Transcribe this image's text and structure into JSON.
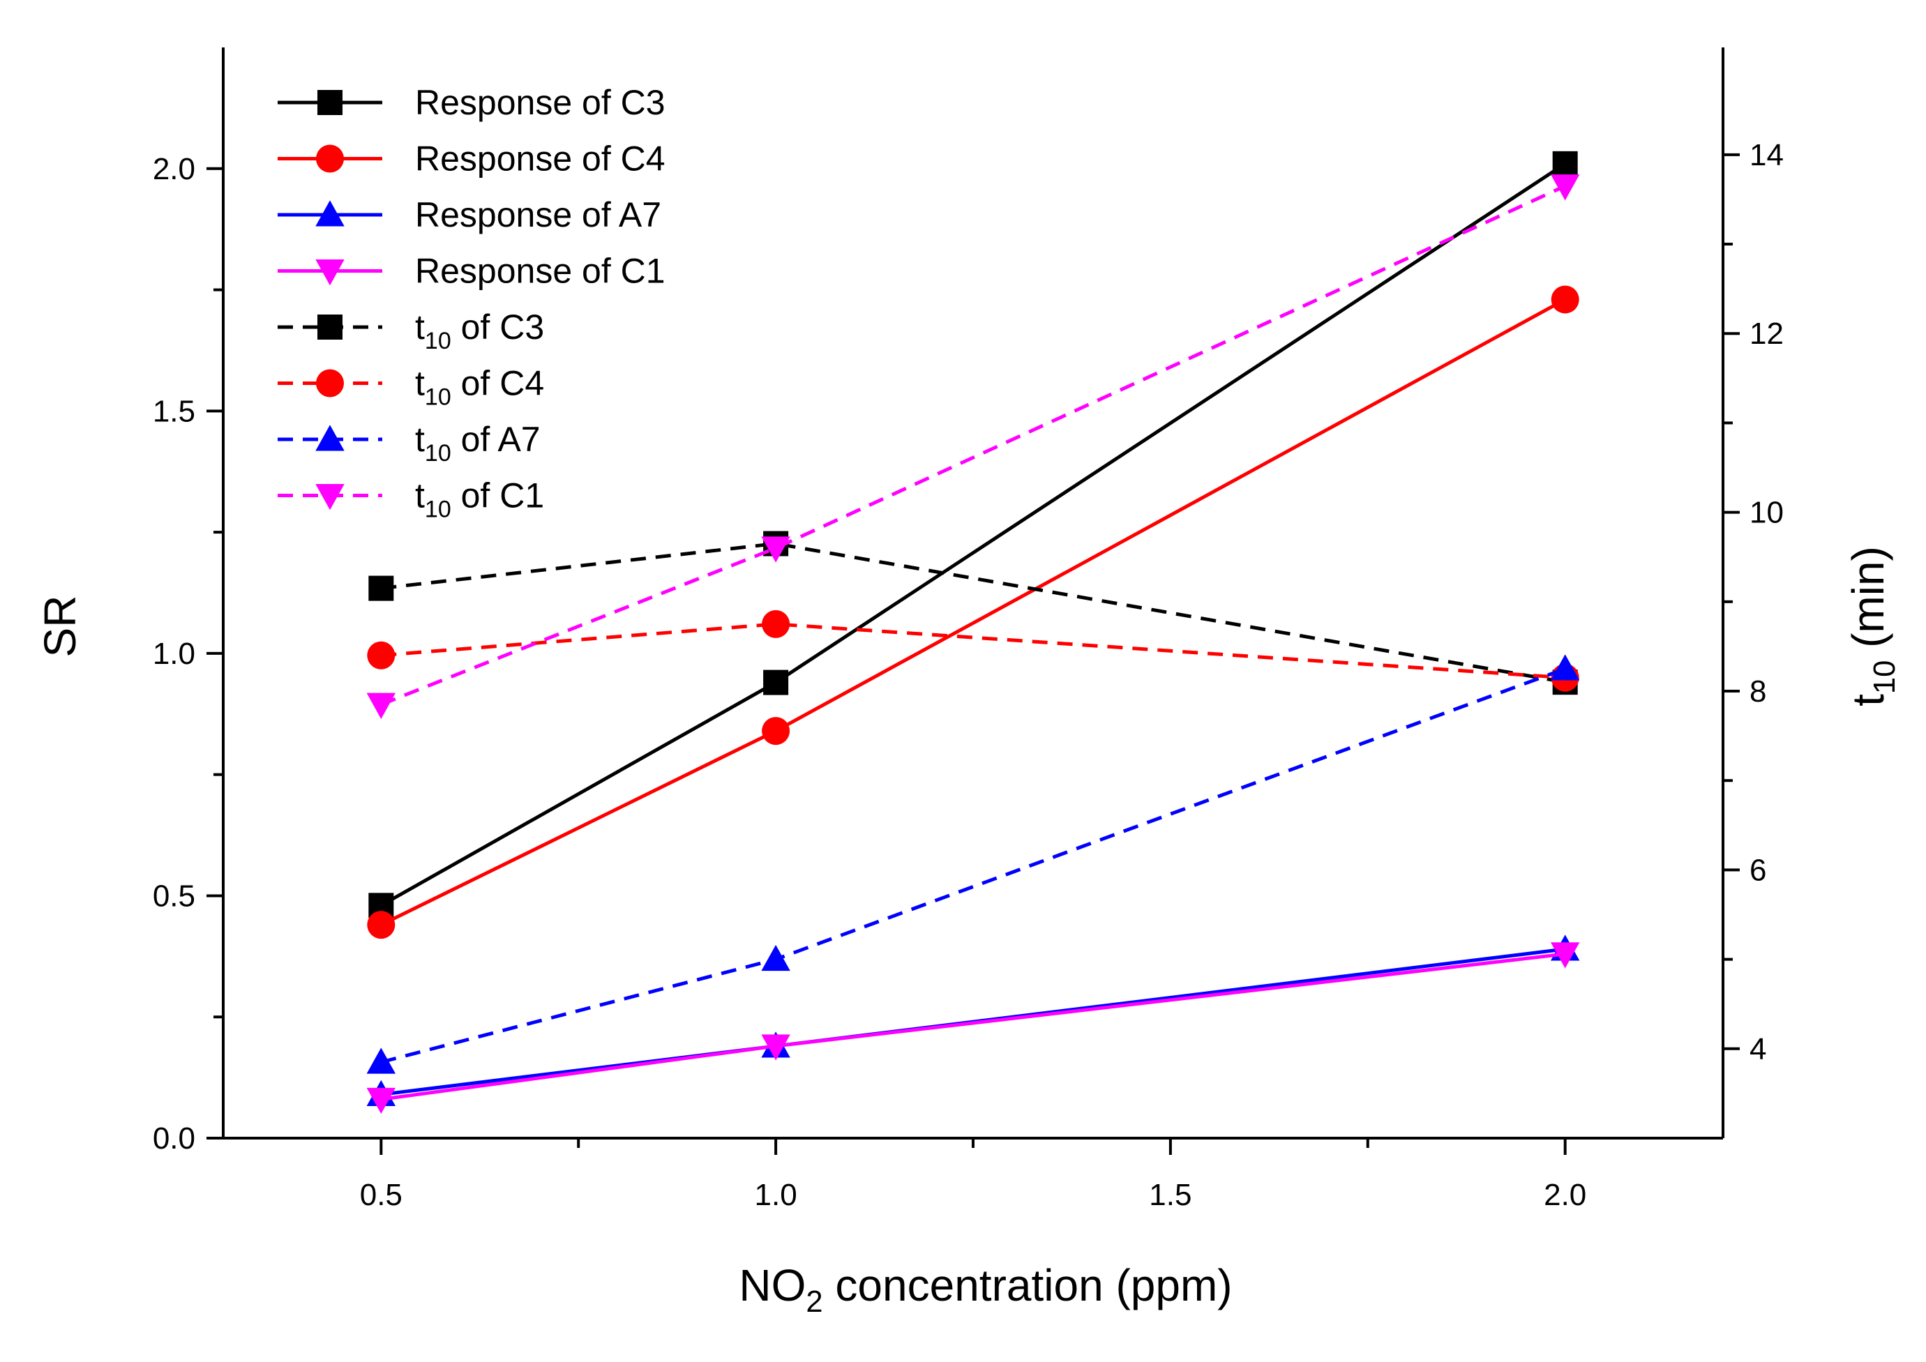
{
  "chart_data": {
    "type": "line",
    "title": "",
    "x": [
      0.5,
      1.0,
      2.0
    ],
    "xlabel": {
      "pre": "NO",
      "sub": "2",
      "post": " concentration (ppm)"
    },
    "ylabel_left": "SR",
    "ylabel_right": {
      "pre": "t",
      "sub": "10",
      "post": " (min)"
    },
    "xlim": [
      0.3,
      2.2
    ],
    "ylim_left": [
      0.0,
      2.25
    ],
    "ylim_right": [
      3.0,
      15.2
    ],
    "x_ticks": [
      0.5,
      1.0,
      1.5,
      2.0
    ],
    "x_tick_labels": [
      "0.5",
      "1.0",
      "1.5",
      "2.0"
    ],
    "x_minor_ticks": [
      0.75,
      1.25,
      1.75
    ],
    "y_left_ticks": [
      0.0,
      0.5,
      1.0,
      1.5,
      2.0
    ],
    "y_left_tick_labels": [
      "0.0",
      "0.5",
      "1.0",
      "1.5",
      "2.0"
    ],
    "y_left_minor_ticks": [
      0.25,
      0.75,
      1.25,
      1.75
    ],
    "y_right_ticks": [
      4,
      6,
      8,
      10,
      12,
      14
    ],
    "y_right_tick_labels": [
      "4",
      "6",
      "8",
      "10",
      "12",
      "14"
    ],
    "y_right_minor_ticks": [
      5,
      7,
      9,
      11,
      13
    ],
    "grid": false,
    "legend_position": "top-left",
    "series": [
      {
        "name": "Response of C3",
        "label_pre": "Response of C3",
        "label_sub": "",
        "label_post": "",
        "axis": "left",
        "style": "solid",
        "color": "#000000",
        "marker": "square",
        "values": [
          0.48,
          0.94,
          2.01
        ]
      },
      {
        "name": "Response of C4",
        "label_pre": "Response of C4",
        "label_sub": "",
        "label_post": "",
        "axis": "left",
        "style": "solid",
        "color": "#ff0000",
        "marker": "circle",
        "values": [
          0.44,
          0.84,
          1.73
        ]
      },
      {
        "name": "Response of A7",
        "label_pre": "Response of A7",
        "label_sub": "",
        "label_post": "",
        "axis": "left",
        "style": "solid",
        "color": "#0000ff",
        "marker": "triangle-up",
        "values": [
          0.09,
          0.19,
          0.39
        ]
      },
      {
        "name": "Response of C1",
        "label_pre": "Response of C1",
        "label_sub": "",
        "label_post": "",
        "axis": "left",
        "style": "solid",
        "color": "#ff00ff",
        "marker": "triangle-down",
        "values": [
          0.08,
          0.19,
          0.38
        ]
      },
      {
        "name": "t10 of C3",
        "label_pre": "t",
        "label_sub": "10",
        "label_post": " of C3",
        "axis": "right",
        "style": "dashed",
        "color": "#000000",
        "marker": "square",
        "values": [
          9.15,
          9.65,
          8.1
        ]
      },
      {
        "name": "t10 of C4",
        "label_pre": "t",
        "label_sub": "10",
        "label_post": " of C4",
        "axis": "right",
        "style": "dashed",
        "color": "#ff0000",
        "marker": "circle",
        "values": [
          8.4,
          8.75,
          8.15
        ]
      },
      {
        "name": "t10 of A7",
        "label_pre": "t",
        "label_sub": "10",
        "label_post": " of A7",
        "axis": "right",
        "style": "dashed",
        "color": "#0000ff",
        "marker": "triangle-up",
        "values": [
          3.85,
          5.0,
          8.25
        ]
      },
      {
        "name": "t10 of C1",
        "label_pre": "t",
        "label_sub": "10",
        "label_post": " of C1",
        "axis": "right",
        "style": "dashed",
        "color": "#ff00ff",
        "marker": "triangle-down",
        "values": [
          7.85,
          9.6,
          13.65
        ]
      }
    ]
  }
}
